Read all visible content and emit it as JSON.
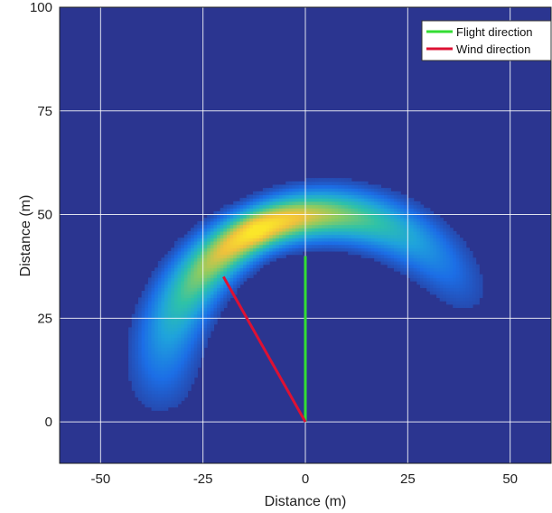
{
  "chart_data": {
    "type": "heatmap",
    "xlabel": "Distance (m)",
    "ylabel": "Distance (m)",
    "xlim": [
      -60,
      60
    ],
    "ylim": [
      -10,
      100
    ],
    "x_ticks": [
      -50,
      -25,
      0,
      25,
      50
    ],
    "y_ticks": [
      0,
      25,
      50,
      75,
      100
    ],
    "grid": true,
    "legend_placement": "top-right",
    "background_color": "#2b3590",
    "series": [
      {
        "name": "Flight direction",
        "color": "#33dd33",
        "x": [
          0,
          0
        ],
        "y": [
          0,
          40
        ]
      },
      {
        "name": "Wind direction",
        "color": "#dd1133",
        "x": [
          0,
          -20
        ],
        "y": [
          0,
          35
        ]
      }
    ],
    "plume": {
      "description_values": "arc-shaped concentration field",
      "center_x": 5,
      "center_y": 10,
      "radius": 40,
      "angle_start_deg": 200,
      "angle_peak_deg": 115,
      "angle_end_deg": 15,
      "colormap": [
        "#2b3590",
        "#1c6ee6",
        "#1fa3dc",
        "#2ec2a8",
        "#8ccb62",
        "#f0c13c",
        "#fbe62a"
      ]
    }
  }
}
